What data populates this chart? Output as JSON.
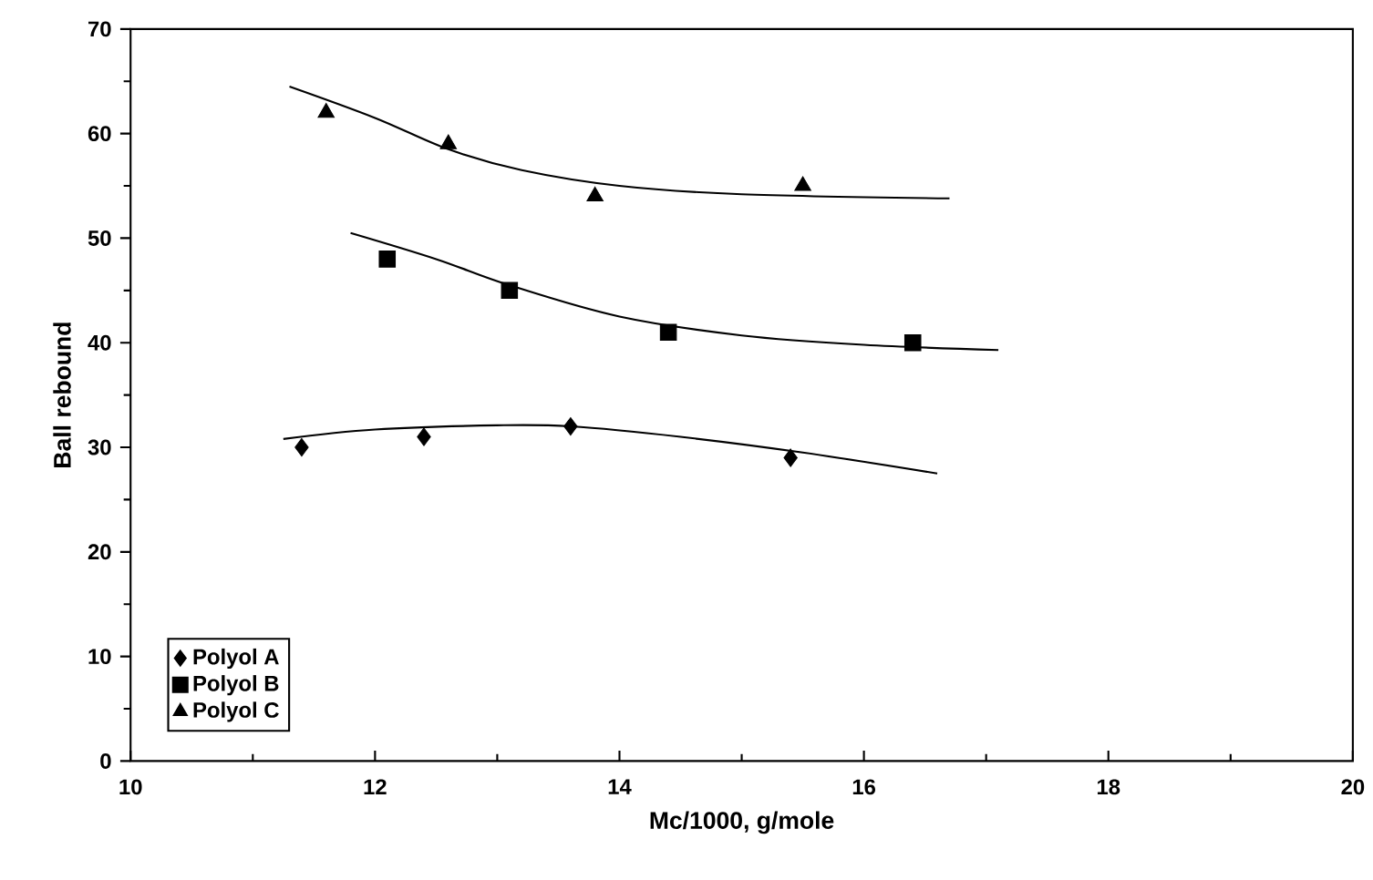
{
  "chart_data": {
    "type": "scatter",
    "xlabel": "Mc/1000, g/mole",
    "ylabel": "Ball rebound",
    "xlim": [
      10,
      20
    ],
    "ylim": [
      0,
      70
    ],
    "xticks": [
      10,
      12,
      14,
      16,
      18,
      20
    ],
    "yticks": [
      0,
      10,
      20,
      30,
      40,
      50,
      60,
      70
    ],
    "grid": false,
    "legend": "bottom left",
    "series": [
      {
        "name": "Polyol A",
        "color": "#000000",
        "marker": "diamond",
        "x": [
          11.4,
          12.4,
          13.6,
          15.4
        ],
        "values": [
          30,
          31,
          32,
          29
        ]
      },
      {
        "name": "Polyol B",
        "color": "#000000",
        "marker": "square",
        "x": [
          12.1,
          13.1,
          14.4,
          16.4
        ],
        "values": [
          48,
          45,
          41,
          40
        ]
      },
      {
        "name": "Polyol C",
        "color": "#000000",
        "marker": "triangle",
        "x": [
          11.6,
          12.6,
          13.8,
          15.5
        ],
        "values": [
          62,
          59,
          54,
          55
        ]
      },
      {
        "type": "line",
        "color": "#000000",
        "marker": "none",
        "x": [
          11.25,
          12.0,
          13.0,
          13.6,
          14.5,
          15.5,
          16.6
        ],
        "values": [
          30.8,
          31.7,
          32.1,
          32,
          31,
          29.5,
          27.5
        ]
      },
      {
        "type": "line",
        "color": "#000000",
        "marker": "none",
        "x": [
          11.8,
          12.5,
          13.1,
          14.0,
          15.0,
          16.0,
          17.1
        ],
        "values": [
          50.5,
          48,
          45.5,
          42.5,
          40.7,
          39.8,
          39.3
        ]
      },
      {
        "type": "line",
        "color": "#000000",
        "marker": "none",
        "x": [
          11.3,
          12.0,
          12.6,
          13.2,
          14.0,
          15.0,
          16.7
        ],
        "values": [
          64.5,
          61.5,
          58.5,
          56.5,
          55,
          54.2,
          53.8
        ]
      }
    ]
  }
}
